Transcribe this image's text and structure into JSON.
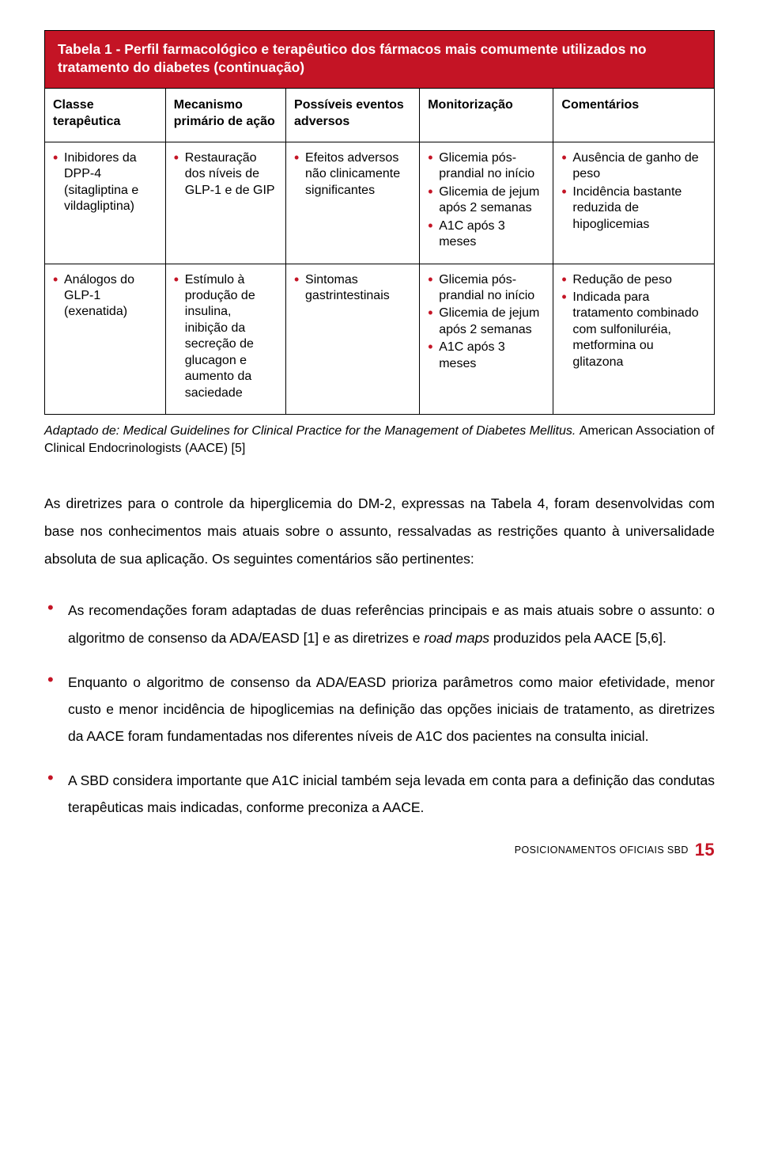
{
  "colors": {
    "accent": "#c41425",
    "border": "#000000",
    "bg": "#ffffff",
    "text": "#000000",
    "header_bg": "#c41425",
    "header_text": "#ffffff"
  },
  "table": {
    "title": "Tabela 1 - Perfil farmacológico e terapêutico dos fármacos mais comumente utilizados no tratamento do diabetes (continuação)",
    "col_widths_pct": [
      18,
      18,
      20,
      20,
      24
    ],
    "headers": [
      "Classe terapêutica",
      "Mecanismo primário de ação",
      "Possíveis eventos adversos",
      "Monitorização",
      "Comentários"
    ],
    "rows": [
      {
        "classe": [
          "Inibidores da DPP-4 (sitagliptina e vildagliptina)"
        ],
        "mecanismo": [
          "Restauração dos níveis de GLP-1 e de GIP"
        ],
        "eventos": [
          "Efeitos adversos não clinicamente significantes"
        ],
        "monitor": [
          "Glicemia pós-prandial no início",
          "Glicemia de jejum após 2 semanas",
          "A1C após 3 meses"
        ],
        "coment": [
          "Ausência de ganho de peso",
          "Incidência bastante reduzida de hipoglicemias"
        ]
      },
      {
        "classe": [
          "Análogos do GLP-1 (exenatida)"
        ],
        "mecanismo": [
          "Estímulo à produção de insulina, inibição da secreção de glucagon e aumento da saciedade"
        ],
        "eventos": [
          "Sintomas gastrintestinais"
        ],
        "monitor": [
          "Glicemia pós-prandial no início",
          "Glicemia de jejum após 2 semanas",
          "A1C após 3 meses"
        ],
        "coment": [
          "Redução de peso",
          "Indicada para tratamento combinado com sulfoniluréia, metformina ou glitazona"
        ]
      }
    ],
    "caption_italic": "Adaptado de: Medical Guidelines for Clinical Practice for the Management of Diabetes Mellitus. ",
    "caption_plain": "American Association of Clinical Endocrinologists (AACE) [5]"
  },
  "body": {
    "para": "As diretrizes para o controle da hiperglicemia do DM-2, expressas na Tabela 4, foram desenvolvidas com base nos conhecimentos mais atuais sobre o assunto, ressalvadas as restrições quanto à universalidade absoluta de sua aplicação. Os seguintes comentários são pertinentes:",
    "bullets": [
      {
        "pre": "As recomendações foram adaptadas de duas referências principais e as mais atuais sobre o assunto: o algoritmo de consenso da ADA/EASD [1] e as diretrizes e ",
        "italic": "road maps",
        "post": " produzidos pela AACE [5,6]."
      },
      {
        "pre": "Enquanto o algoritmo de consenso da ADA/EASD prioriza parâmetros como maior efetividade, menor custo e menor incidência de hipoglicemias na definição das opções iniciais de tratamento, as diretrizes da AACE foram fundamentadas nos diferentes níveis de A1C dos pacientes na consulta inicial.",
        "italic": "",
        "post": ""
      },
      {
        "pre": "A SBD considera importante que A1C inicial também seja levada em conta para a definição das condutas terapêuticas mais indicadas, conforme preconiza a AACE.",
        "italic": "",
        "post": ""
      }
    ]
  },
  "footer": {
    "label": "POSICIONAMENTOS OFICIAIS SBD",
    "page": "15"
  }
}
